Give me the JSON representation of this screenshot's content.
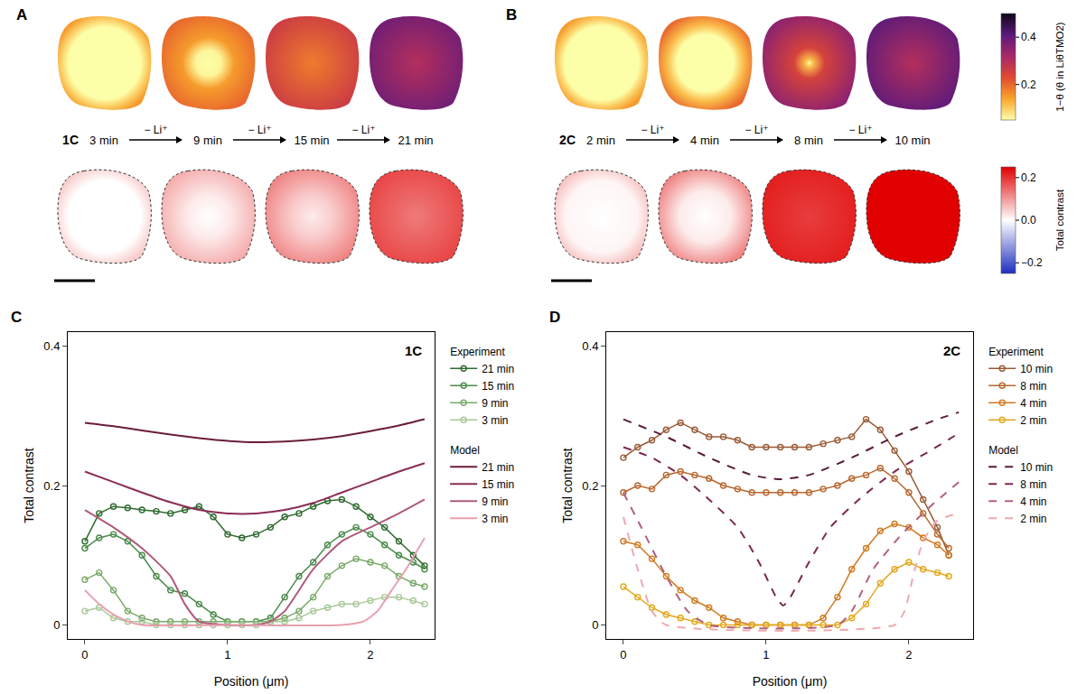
{
  "maps": {
    "panels": [
      {
        "letter": "A",
        "rate": "1C",
        "times": [
          "3 min",
          "9 min",
          "15 min",
          "21 min"
        ],
        "step_label": "− Li⁺",
        "model": [
          [
            [
              0,
              0.05
            ],
            [
              0.7,
              0.05
            ],
            [
              0.85,
              0.1
            ],
            [
              1,
              0.15
            ]
          ],
          [
            [
              0,
              0.05
            ],
            [
              0.25,
              0.06
            ],
            [
              0.5,
              0.15
            ],
            [
              1,
              0.2
            ]
          ],
          [
            [
              0,
              0.18
            ],
            [
              1,
              0.26
            ]
          ],
          [
            [
              0,
              0.3
            ],
            [
              1,
              0.38
            ]
          ]
        ],
        "contrast": [
          [
            [
              0,
              0
            ],
            [
              0.7,
              0
            ],
            [
              1,
              0.05
            ]
          ],
          [
            [
              0,
              0
            ],
            [
              0.4,
              0.02
            ],
            [
              1,
              0.08
            ]
          ],
          [
            [
              0,
              0.02
            ],
            [
              0.4,
              0.05
            ],
            [
              1,
              0.12
            ]
          ],
          [
            [
              0,
              0.13
            ],
            [
              1,
              0.18
            ]
          ]
        ]
      },
      {
        "letter": "B",
        "rate": "2C",
        "times": [
          "2 min",
          "4 min",
          "8 min",
          "10 min"
        ],
        "step_label": "− Li⁺",
        "model": [
          [
            [
              0,
              0.05
            ],
            [
              0.72,
              0.05
            ],
            [
              0.85,
              0.1
            ],
            [
              1,
              0.15
            ]
          ],
          [
            [
              0,
              0.05
            ],
            [
              0.55,
              0.05
            ],
            [
              0.75,
              0.12
            ],
            [
              1,
              0.2
            ]
          ],
          [
            [
              0,
              0.05
            ],
            [
              0.08,
              0.12
            ],
            [
              0.3,
              0.25
            ],
            [
              1,
              0.35
            ]
          ],
          [
            [
              0,
              0.3
            ],
            [
              1,
              0.4
            ]
          ]
        ],
        "contrast": [
          [
            [
              0,
              0
            ],
            [
              0.7,
              0.01
            ],
            [
              1,
              0.06
            ]
          ],
          [
            [
              0,
              0
            ],
            [
              0.5,
              0.02
            ],
            [
              1,
              0.12
            ]
          ],
          [
            [
              0,
              0.19
            ],
            [
              1,
              0.22
            ]
          ],
          [
            [
              0,
              0.25
            ],
            [
              1,
              0.25
            ]
          ]
        ]
      }
    ],
    "colorbars": [
      {
        "title": "1−θ (θ in LiθTMO2)",
        "range": [
          0.05,
          0.5
        ],
        "ticks": [
          0.2,
          0.4
        ],
        "colors": [
          "#fdffa8",
          "#f9a52c",
          "#e0492f",
          "#a82869",
          "#5a1a7a",
          "#100518"
        ]
      },
      {
        "title": "Total contrast",
        "range": [
          -0.25,
          0.25
        ],
        "ticks": [
          {
            "value": -0.2,
            "label": "−0.2"
          },
          {
            "value": 0,
            "label": "0.0"
          },
          0.2
        ],
        "colors": [
          "#1f2fbf",
          "#ffffff",
          "#e00000"
        ]
      }
    ]
  },
  "chart_data": [
    {
      "type": "line",
      "letter": "C",
      "annotation": "1C",
      "x_label": "Position (μm)",
      "y_label": "Total contrast",
      "xlim": [
        -0.12,
        2.45
      ],
      "xticks": [
        0,
        1,
        2
      ],
      "ylim": [
        -0.02,
        0.42
      ],
      "yticks": [
        0,
        0.2,
        0.4
      ],
      "legend": "right",
      "series": [
        {
          "name": "21 min",
          "group": "Experiment",
          "color": "#2f6b2f",
          "marker": "circle-open",
          "line_style": "solid",
          "x": [
            0,
            0.1,
            0.2,
            0.3,
            0.4,
            0.5,
            0.6,
            0.7,
            0.8,
            0.9,
            1,
            1.1,
            1.2,
            1.3,
            1.4,
            1.5,
            1.6,
            1.7,
            1.8,
            1.9,
            2,
            2.1,
            2.2,
            2.3,
            2.38
          ],
          "values": [
            0.12,
            0.16,
            0.17,
            0.168,
            0.165,
            0.163,
            0.16,
            0.165,
            0.17,
            0.155,
            0.13,
            0.125,
            0.13,
            0.14,
            0.155,
            0.16,
            0.17,
            0.178,
            0.18,
            0.17,
            0.155,
            0.14,
            0.12,
            0.1,
            0.085
          ]
        },
        {
          "name": "15 min",
          "group": "Experiment",
          "color": "#4a8a4a",
          "marker": "circle-open",
          "line_style": "solid",
          "x": [
            0,
            0.1,
            0.2,
            0.3,
            0.4,
            0.5,
            0.6,
            0.7,
            0.8,
            0.9,
            1,
            1.1,
            1.2,
            1.3,
            1.4,
            1.5,
            1.6,
            1.7,
            1.8,
            1.9,
            2,
            2.1,
            2.2,
            2.3,
            2.38
          ],
          "values": [
            0.11,
            0.125,
            0.13,
            0.12,
            0.1,
            0.07,
            0.05,
            0.045,
            0.03,
            0.015,
            0.005,
            0.005,
            0.005,
            0.01,
            0.04,
            0.07,
            0.09,
            0.115,
            0.13,
            0.14,
            0.13,
            0.115,
            0.1,
            0.09,
            0.08
          ]
        },
        {
          "name": "9 min",
          "group": "Experiment",
          "color": "#7aaa6a",
          "marker": "circle-open",
          "line_style": "solid",
          "x": [
            0,
            0.1,
            0.2,
            0.3,
            0.4,
            0.5,
            0.6,
            0.7,
            0.8,
            0.9,
            1,
            1.1,
            1.2,
            1.3,
            1.4,
            1.5,
            1.6,
            1.7,
            1.8,
            1.9,
            2,
            2.1,
            2.2,
            2.3,
            2.38
          ],
          "values": [
            0.065,
            0.075,
            0.05,
            0.02,
            0.01,
            0.005,
            0.005,
            0.005,
            0.005,
            0.005,
            0.005,
            0.005,
            0.005,
            0.005,
            0.01,
            0.02,
            0.04,
            0.07,
            0.085,
            0.095,
            0.09,
            0.085,
            0.07,
            0.06,
            0.055
          ]
        },
        {
          "name": "3 min",
          "group": "Experiment",
          "color": "#a8c898",
          "marker": "circle-open",
          "line_style": "solid",
          "x": [
            0,
            0.1,
            0.2,
            0.3,
            0.4,
            0.5,
            0.6,
            0.7,
            0.8,
            0.9,
            1,
            1.1,
            1.2,
            1.3,
            1.4,
            1.5,
            1.6,
            1.7,
            1.8,
            1.9,
            2,
            2.1,
            2.2,
            2.3,
            2.38
          ],
          "values": [
            0.02,
            0.025,
            0.01,
            0.005,
            0.005,
            0,
            0,
            0,
            0,
            0,
            0,
            0,
            0,
            0.005,
            0.005,
            0.01,
            0.02,
            0.025,
            0.03,
            0.03,
            0.035,
            0.04,
            0.04,
            0.035,
            0.03
          ]
        },
        {
          "name": "21 min",
          "group": "Model",
          "color": "#6b1d3d",
          "line_style": "solid",
          "x": [
            0,
            0.2,
            0.4,
            0.6,
            0.8,
            1,
            1.2,
            1.4,
            1.6,
            1.8,
            2,
            2.2,
            2.38
          ],
          "values": [
            0.29,
            0.285,
            0.279,
            0.273,
            0.268,
            0.264,
            0.262,
            0.263,
            0.266,
            0.271,
            0.278,
            0.286,
            0.295
          ]
        },
        {
          "name": "15 min",
          "group": "Model",
          "color": "#8b2d55",
          "line_style": "solid",
          "x": [
            0,
            0.2,
            0.4,
            0.6,
            0.8,
            1,
            1.2,
            1.4,
            1.6,
            1.8,
            2,
            2.2,
            2.38
          ],
          "values": [
            0.22,
            0.205,
            0.19,
            0.176,
            0.165,
            0.16,
            0.16,
            0.165,
            0.175,
            0.19,
            0.205,
            0.22,
            0.232
          ]
        },
        {
          "name": "9 min",
          "group": "Model",
          "color": "#b05a7a",
          "line_style": "solid",
          "x": [
            0,
            0.2,
            0.4,
            0.6,
            0.7,
            0.8,
            1,
            1.2,
            1.3,
            1.4,
            1.6,
            1.8,
            2,
            2.2,
            2.38
          ],
          "values": [
            0.165,
            0.14,
            0.11,
            0.07,
            0.03,
            0.005,
            0,
            0,
            0.005,
            0.02,
            0.08,
            0.12,
            0.14,
            0.16,
            0.18
          ]
        },
        {
          "name": "3 min",
          "group": "Model",
          "color": "#e8a0b0",
          "line_style": "solid",
          "x": [
            0,
            0.1,
            0.2,
            0.3,
            0.4,
            1,
            1.8,
            1.95,
            2.05,
            2.15,
            2.25,
            2.38
          ],
          "values": [
            0.05,
            0.03,
            0.015,
            0.005,
            0,
            0,
            0,
            0.005,
            0.02,
            0.05,
            0.08,
            0.125
          ]
        }
      ]
    },
    {
      "type": "line",
      "letter": "D",
      "annotation": "2C",
      "x_label": "Position (μm)",
      "y_label": "Total contrast",
      "xlim": [
        -0.12,
        2.45
      ],
      "xticks": [
        0,
        1,
        2
      ],
      "ylim": [
        -0.02,
        0.42
      ],
      "yticks": [
        0,
        0.2,
        0.4
      ],
      "legend": "right",
      "series": [
        {
          "name": "10 min",
          "group": "Experiment",
          "color": "#9a5a36",
          "marker": "circle-open",
          "line_style": "solid",
          "x": [
            0,
            0.1,
            0.2,
            0.3,
            0.4,
            0.5,
            0.6,
            0.7,
            0.8,
            0.9,
            1,
            1.1,
            1.2,
            1.3,
            1.4,
            1.5,
            1.6,
            1.7,
            1.8,
            1.9,
            2,
            2.1,
            2.2,
            2.28
          ],
          "values": [
            0.24,
            0.255,
            0.265,
            0.28,
            0.29,
            0.28,
            0.27,
            0.27,
            0.265,
            0.255,
            0.255,
            0.255,
            0.255,
            0.255,
            0.26,
            0.265,
            0.27,
            0.295,
            0.28,
            0.25,
            0.22,
            0.18,
            0.14,
            0.1
          ]
        },
        {
          "name": "8 min",
          "group": "Experiment",
          "color": "#b8672e",
          "marker": "circle-open",
          "line_style": "solid",
          "x": [
            0,
            0.1,
            0.2,
            0.3,
            0.4,
            0.5,
            0.6,
            0.7,
            0.8,
            0.9,
            1,
            1.1,
            1.2,
            1.3,
            1.4,
            1.5,
            1.6,
            1.7,
            1.8,
            1.9,
            2,
            2.1,
            2.2,
            2.28
          ],
          "values": [
            0.19,
            0.2,
            0.195,
            0.215,
            0.22,
            0.215,
            0.21,
            0.2,
            0.195,
            0.19,
            0.19,
            0.19,
            0.19,
            0.19,
            0.195,
            0.2,
            0.21,
            0.215,
            0.225,
            0.21,
            0.19,
            0.16,
            0.13,
            0.11
          ]
        },
        {
          "name": "4 min",
          "group": "Experiment",
          "color": "#d07a22",
          "marker": "circle-open",
          "line_style": "solid",
          "x": [
            0,
            0.1,
            0.2,
            0.3,
            0.4,
            0.5,
            0.6,
            0.7,
            0.8,
            0.9,
            1,
            1.1,
            1.2,
            1.3,
            1.4,
            1.5,
            1.6,
            1.7,
            1.8,
            1.9,
            2,
            2.1,
            2.2,
            2.28
          ],
          "values": [
            0.12,
            0.115,
            0.095,
            0.07,
            0.05,
            0.035,
            0.025,
            0.01,
            0.005,
            0,
            0,
            0,
            0,
            0,
            0.01,
            0.04,
            0.08,
            0.11,
            0.135,
            0.145,
            0.14,
            0.125,
            0.115,
            0.1
          ]
        },
        {
          "name": "2 min",
          "group": "Experiment",
          "color": "#e3a81c",
          "marker": "circle-open",
          "line_style": "solid",
          "x": [
            0,
            0.1,
            0.2,
            0.3,
            0.4,
            0.5,
            0.6,
            0.7,
            0.8,
            0.9,
            1,
            1.1,
            1.2,
            1.3,
            1.4,
            1.5,
            1.6,
            1.7,
            1.8,
            1.9,
            2,
            2.1,
            2.2,
            2.28
          ],
          "values": [
            0.055,
            0.04,
            0.025,
            0.015,
            0.01,
            0.005,
            0,
            0,
            0,
            0,
            0,
            0,
            0,
            0,
            0,
            0,
            0.01,
            0.03,
            0.06,
            0.08,
            0.09,
            0.08,
            0.075,
            0.07
          ]
        },
        {
          "name": "10 min",
          "group": "Model",
          "color": "#5a1a3a",
          "line_style": "dashed",
          "x": [
            0,
            0.3,
            0.6,
            0.9,
            1.1,
            1.3,
            1.6,
            1.9,
            2.2,
            2.35
          ],
          "values": [
            0.295,
            0.27,
            0.24,
            0.215,
            0.209,
            0.215,
            0.24,
            0.27,
            0.295,
            0.305
          ]
        },
        {
          "name": "8 min",
          "group": "Model",
          "color": "#7a2a50",
          "line_style": "dashed",
          "x": [
            0,
            0.2,
            0.4,
            0.6,
            0.8,
            0.95,
            1.07,
            1.12,
            1.17,
            1.3,
            1.45,
            1.65,
            1.9,
            2.15,
            2.35
          ],
          "values": [
            0.255,
            0.24,
            0.215,
            0.18,
            0.14,
            0.09,
            0.04,
            0.028,
            0.04,
            0.09,
            0.14,
            0.18,
            0.22,
            0.25,
            0.275
          ]
        },
        {
          "name": "4 min",
          "group": "Model",
          "color": "#b06080",
          "line_style": "dashed",
          "x": [
            0,
            0.15,
            0.3,
            0.45,
            0.6,
            1.5,
            1.6,
            1.75,
            1.95,
            2.15,
            2.35
          ],
          "values": [
            0.19,
            0.13,
            0.07,
            0.02,
            0,
            0,
            0.02,
            0.08,
            0.13,
            0.17,
            0.205
          ]
        },
        {
          "name": "2 min",
          "group": "Model",
          "color": "#f0a8b0",
          "line_style": "dashed",
          "x": [
            0,
            0.1,
            0.2,
            0.3,
            1.9,
            1.97,
            2.03,
            2.1,
            2.2,
            2.35
          ],
          "values": [
            0.155,
            0.08,
            0.02,
            0,
            0,
            0.02,
            0.07,
            0.12,
            0.15,
            0.16
          ]
        }
      ]
    }
  ]
}
